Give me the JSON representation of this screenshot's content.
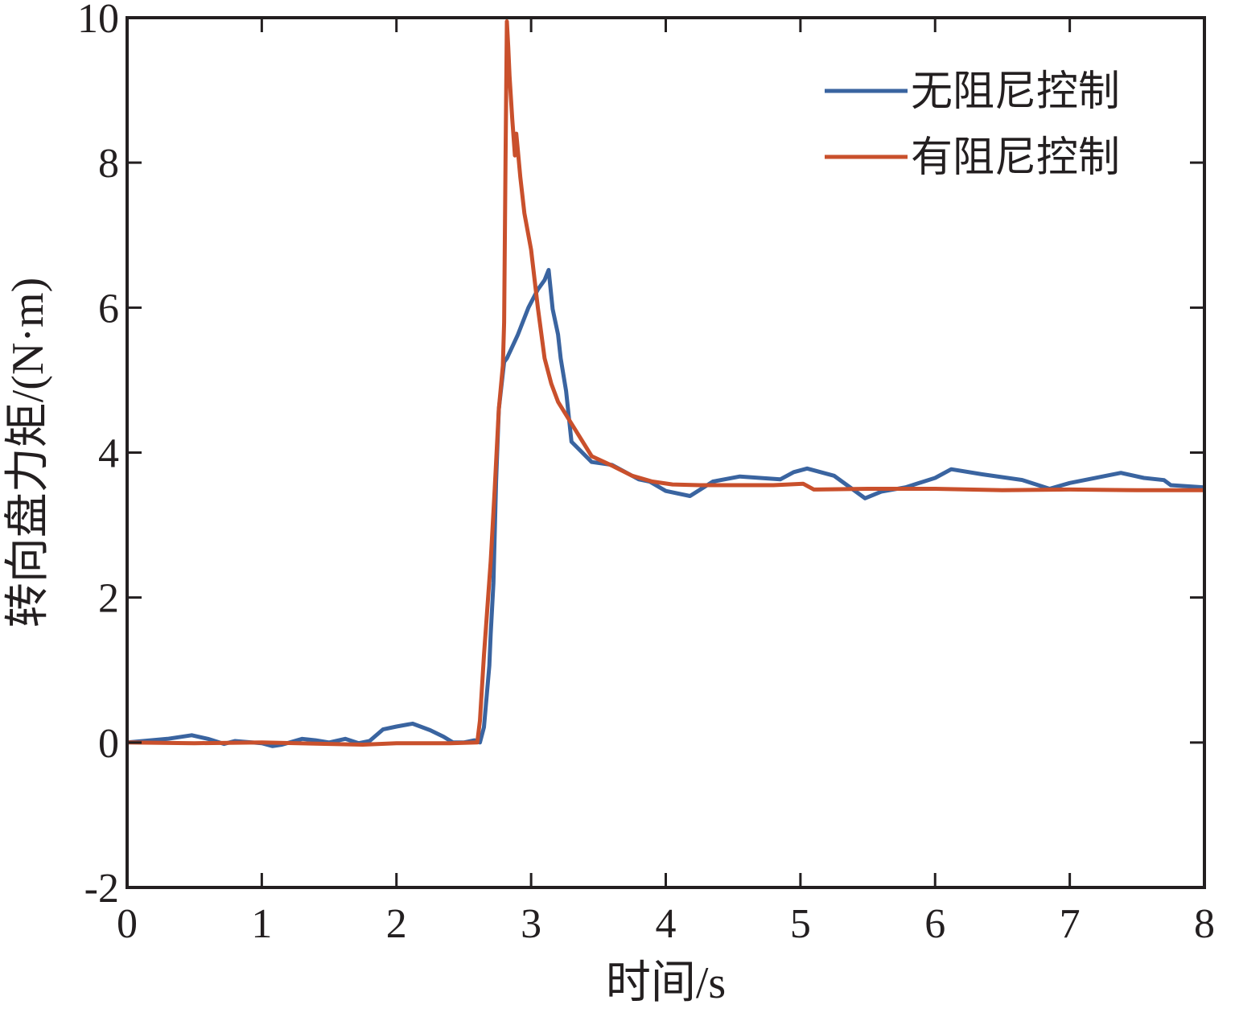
{
  "chart_data": {
    "type": "line",
    "xlabel": "时间/s",
    "ylabel": "转向盘力矩/(N·m)",
    "xlim": [
      0,
      8
    ],
    "ylim": [
      -2,
      10
    ],
    "x_ticks": [
      "0",
      "1",
      "2",
      "3",
      "4",
      "5",
      "6",
      "7",
      "8"
    ],
    "y_ticks": [
      "-2",
      "0",
      "2",
      "4",
      "6",
      "8",
      "10"
    ],
    "grid": false,
    "legend_position": "top-right",
    "series": [
      {
        "name": "无阻尼控制",
        "color": "#3a64a0",
        "x": [
          0,
          0.3,
          0.48,
          0.6,
          0.72,
          0.8,
          1.0,
          1.08,
          1.15,
          1.3,
          1.4,
          1.5,
          1.62,
          1.72,
          1.8,
          1.9,
          2.0,
          2.12,
          2.25,
          2.35,
          2.42,
          2.5,
          2.58,
          2.62,
          2.65,
          2.67,
          2.69,
          2.7,
          2.72,
          2.74,
          2.76,
          2.8,
          2.82,
          2.9,
          2.98,
          3.05,
          3.1,
          3.13,
          3.16,
          3.2,
          3.22,
          3.26,
          3.3,
          3.45,
          3.6,
          3.8,
          3.88,
          4.0,
          4.18,
          4.35,
          4.55,
          4.85,
          4.95,
          5.05,
          5.25,
          5.48,
          5.6,
          5.78,
          6.0,
          6.12,
          6.35,
          6.65,
          6.85,
          7.0,
          7.38,
          7.55,
          7.7,
          7.75,
          8.0
        ],
        "values": [
          0,
          0.05,
          0.1,
          0.05,
          -0.02,
          0.02,
          -0.01,
          -0.05,
          -0.03,
          0.05,
          0.03,
          0.0,
          0.05,
          -0.01,
          0.02,
          0.18,
          0.22,
          0.26,
          0.17,
          0.08,
          0.0,
          0.0,
          0.03,
          0.0,
          0.21,
          0.64,
          1.06,
          1.5,
          2.2,
          3.6,
          4.6,
          5.25,
          5.3,
          5.62,
          6.0,
          6.25,
          6.38,
          6.52,
          5.98,
          5.63,
          5.3,
          4.85,
          4.15,
          3.87,
          3.83,
          3.63,
          3.6,
          3.47,
          3.4,
          3.6,
          3.67,
          3.63,
          3.73,
          3.78,
          3.68,
          3.37,
          3.46,
          3.52,
          3.65,
          3.77,
          3.7,
          3.62,
          3.5,
          3.58,
          3.72,
          3.65,
          3.62,
          3.55,
          3.52
        ]
      },
      {
        "name": "有阻尼控制",
        "color": "#c9502c",
        "x": [
          0,
          0.5,
          1.0,
          1.5,
          1.75,
          2.0,
          2.4,
          2.6,
          2.62,
          2.65,
          2.7,
          2.73,
          2.76,
          2.79,
          2.8,
          2.81,
          2.82,
          2.83,
          2.84,
          2.86,
          2.88,
          2.89,
          2.9,
          2.92,
          2.95,
          3.0,
          3.05,
          3.1,
          3.15,
          3.2,
          3.3,
          3.45,
          3.6,
          3.75,
          3.9,
          4.05,
          4.25,
          4.5,
          4.8,
          5.02,
          5.1,
          5.5,
          6.0,
          6.5,
          7.0,
          7.5,
          8.0
        ],
        "values": [
          0,
          -0.01,
          0,
          -0.02,
          -0.03,
          -0.01,
          -0.01,
          0,
          0.3,
          1.2,
          2.5,
          3.5,
          4.6,
          5.2,
          5.8,
          8.0,
          9.95,
          9.6,
          9.2,
          8.6,
          8.1,
          8.4,
          8.2,
          7.8,
          7.3,
          6.8,
          6.0,
          5.3,
          4.95,
          4.7,
          4.4,
          3.95,
          3.82,
          3.68,
          3.6,
          3.56,
          3.55,
          3.55,
          3.55,
          3.57,
          3.49,
          3.5,
          3.5,
          3.48,
          3.49,
          3.48,
          3.48
        ]
      }
    ]
  }
}
